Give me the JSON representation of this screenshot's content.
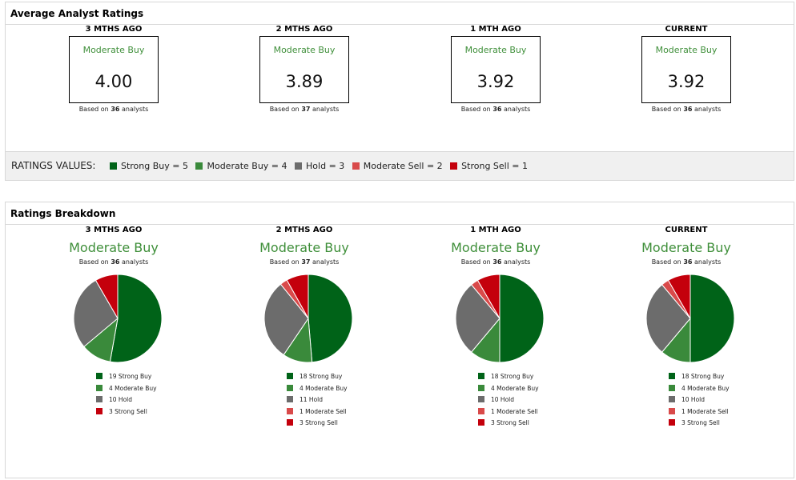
{
  "colors": {
    "strong_buy": "#006318",
    "moderate_buy": "#3a8a3b",
    "hold": "#6c6c6c",
    "moderate_sell": "#d94a4a",
    "strong_sell": "#c4000c",
    "accent_green": "#3f8f3a"
  },
  "avg": {
    "title": "Average Analyst Ratings",
    "based_prefix": "Based on",
    "based_suffix": "analysts",
    "columns": [
      {
        "period": "3 MTHS AGO",
        "rating": "Moderate Buy",
        "value": "4.00",
        "analysts": "36"
      },
      {
        "period": "2 MTHS AGO",
        "rating": "Moderate Buy",
        "value": "3.89",
        "analysts": "37"
      },
      {
        "period": "1 MTH AGO",
        "rating": "Moderate Buy",
        "value": "3.92",
        "analysts": "36"
      },
      {
        "period": "CURRENT",
        "rating": "Moderate Buy",
        "value": "3.92",
        "analysts": "36"
      }
    ],
    "legend": {
      "title": "RATINGS VALUES:",
      "items": [
        "Strong Buy = 5",
        "Moderate Buy = 4",
        "Hold = 3",
        "Moderate Sell = 2",
        "Strong Sell = 1"
      ]
    }
  },
  "breakdown": {
    "title": "Ratings Breakdown"
  },
  "chart_data": [
    {
      "type": "pie",
      "title": "3 MTHS AGO",
      "subtitle": "Moderate Buy",
      "analysts": "36",
      "categories": [
        "Strong Buy",
        "Moderate Buy",
        "Hold",
        "Strong Sell"
      ],
      "values": [
        19,
        4,
        10,
        3
      ],
      "labels": [
        "19 Strong Buy",
        "4 Moderate Buy",
        "10 Hold",
        "3 Strong Sell"
      ],
      "color_keys": [
        "strong_buy",
        "moderate_buy",
        "hold",
        "strong_sell"
      ]
    },
    {
      "type": "pie",
      "title": "2 MTHS AGO",
      "subtitle": "Moderate Buy",
      "analysts": "37",
      "categories": [
        "Strong Buy",
        "Moderate Buy",
        "Hold",
        "Moderate Sell",
        "Strong Sell"
      ],
      "values": [
        18,
        4,
        11,
        1,
        3
      ],
      "labels": [
        "18 Strong Buy",
        "4 Moderate Buy",
        "11 Hold",
        "1 Moderate Sell",
        "3 Strong Sell"
      ],
      "color_keys": [
        "strong_buy",
        "moderate_buy",
        "hold",
        "moderate_sell",
        "strong_sell"
      ]
    },
    {
      "type": "pie",
      "title": "1 MTH AGO",
      "subtitle": "Moderate Buy",
      "analysts": "36",
      "categories": [
        "Strong Buy",
        "Moderate Buy",
        "Hold",
        "Moderate Sell",
        "Strong Sell"
      ],
      "values": [
        18,
        4,
        10,
        1,
        3
      ],
      "labels": [
        "18 Strong Buy",
        "4 Moderate Buy",
        "10 Hold",
        "1 Moderate Sell",
        "3 Strong Sell"
      ],
      "color_keys": [
        "strong_buy",
        "moderate_buy",
        "hold",
        "moderate_sell",
        "strong_sell"
      ]
    },
    {
      "type": "pie",
      "title": "CURRENT",
      "subtitle": "Moderate Buy",
      "analysts": "36",
      "categories": [
        "Strong Buy",
        "Moderate Buy",
        "Hold",
        "Moderate Sell",
        "Strong Sell"
      ],
      "values": [
        18,
        4,
        10,
        1,
        3
      ],
      "labels": [
        "18 Strong Buy",
        "4 Moderate Buy",
        "10 Hold",
        "1 Moderate Sell",
        "3 Strong Sell"
      ],
      "color_keys": [
        "strong_buy",
        "moderate_buy",
        "hold",
        "moderate_sell",
        "strong_sell"
      ]
    }
  ]
}
